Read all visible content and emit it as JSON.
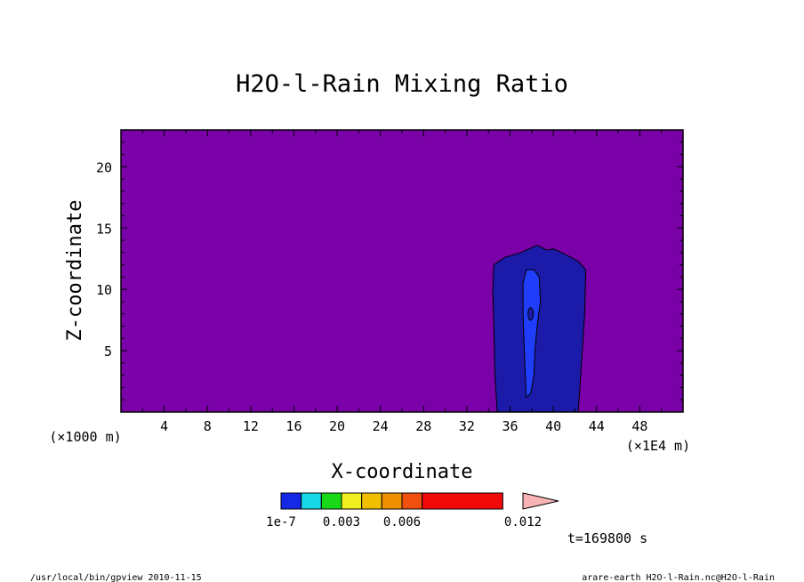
{
  "chart_data": {
    "type": "heatmap",
    "title": "H2O-l-Rain Mixing Ratio",
    "xlabel": "X-coordinate",
    "ylabel": "Z-coordinate",
    "x_unit": "(×1E4 m)",
    "y_unit": "(×1000 m)",
    "xlim": [
      0,
      52
    ],
    "ylim": [
      0,
      23
    ],
    "x_ticks": [
      "4",
      "8",
      "12",
      "16",
      "20",
      "24",
      "28",
      "32",
      "36",
      "40",
      "44",
      "48"
    ],
    "y_ticks": [
      "5",
      "10",
      "15",
      "20"
    ],
    "time_label": "t=169800 s",
    "background_color": "#7a00a8",
    "colorbar": {
      "levels": [
        1e-07,
        0.0015,
        0.003,
        0.0045,
        0.006,
        0.0075,
        0.009,
        0.012
      ],
      "colors": [
        "#1428e6",
        "#16d8e6",
        "#18d818",
        "#f0f020",
        "#f0c000",
        "#f09000",
        "#f05010",
        "#f00a0a",
        "#f88078",
        "#f8b4b4"
      ],
      "labels": [
        "1e-7",
        "0.003",
        "0.006",
        "0.012"
      ]
    },
    "contours": [
      {
        "level": "0 to 1e-7",
        "color": "#1c1aa8",
        "outline": [
          [
            34.8,
            0
          ],
          [
            34.6,
            3
          ],
          [
            34.5,
            7
          ],
          [
            34.4,
            10
          ],
          [
            34.5,
            12.0
          ],
          [
            35.5,
            12.6
          ],
          [
            37.0,
            13.0
          ],
          [
            38.5,
            13.6
          ],
          [
            39.4,
            13.2
          ],
          [
            40.0,
            13.3
          ],
          [
            41.0,
            12.9
          ],
          [
            42.3,
            12.3
          ],
          [
            43.0,
            11.6
          ],
          [
            42.9,
            8
          ],
          [
            42.6,
            4
          ],
          [
            42.3,
            0
          ]
        ]
      },
      {
        "level": "1e-7 to 0.0015",
        "color": "#1f3dfa",
        "outline": [
          [
            37.5,
            1.2
          ],
          [
            37.4,
            3
          ],
          [
            37.3,
            5.5
          ],
          [
            37.2,
            8
          ],
          [
            37.2,
            10.5
          ],
          [
            37.5,
            11.6
          ],
          [
            38.2,
            11.6
          ],
          [
            38.7,
            11.0
          ],
          [
            38.8,
            9
          ],
          [
            38.5,
            7
          ],
          [
            38.3,
            5
          ],
          [
            38.2,
            3
          ],
          [
            37.9,
            1.5
          ]
        ]
      }
    ],
    "footer_left": "/usr/local/bin/gpview  2010-11-15",
    "footer_right": "arare-earth_H2O-l-Rain.nc@H2O-l-Rain"
  }
}
